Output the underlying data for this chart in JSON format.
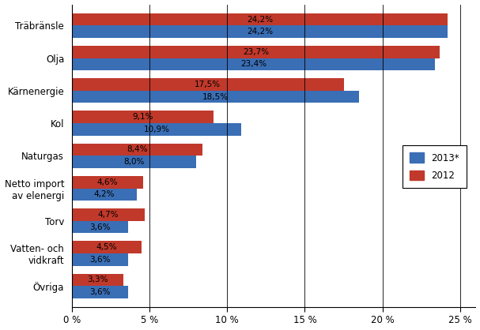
{
  "categories": [
    "Träbränsle",
    "Olja",
    "Kärnenergie",
    "Kol",
    "Naturgas",
    "Netto import\nav elenergi",
    "Torv",
    "Vatten- och\nvidkraft",
    "Övriga"
  ],
  "values_2013": [
    24.2,
    23.4,
    18.5,
    10.9,
    8.0,
    4.2,
    3.6,
    3.6,
    3.6
  ],
  "values_2012": [
    24.2,
    23.7,
    17.5,
    9.1,
    8.4,
    4.6,
    4.7,
    4.5,
    3.3
  ],
  "labels_2013": [
    "24,2%",
    "23,4%",
    "18,5%",
    "10,9%",
    "8,0%",
    "4,2%",
    "3,6%",
    "3,6%",
    "3,6%"
  ],
  "labels_2012": [
    "24,2%",
    "23,7%",
    "17,5%",
    "9,1%",
    "8,4%",
    "4,6%",
    "4,7%",
    "4,5%",
    "3,3%"
  ],
  "color_2013": "#3a6eb5",
  "color_2012": "#c0392b",
  "xlim": [
    0,
    26
  ],
  "xticks": [
    0,
    5,
    10,
    15,
    20,
    25
  ],
  "xticklabels": [
    "0 %",
    "5 %",
    "10 %",
    "15 %",
    "20 %",
    "25 %"
  ],
  "legend_2013": "2013*",
  "legend_2012": "2012",
  "bar_height": 0.38,
  "background_color": "#ffffff"
}
